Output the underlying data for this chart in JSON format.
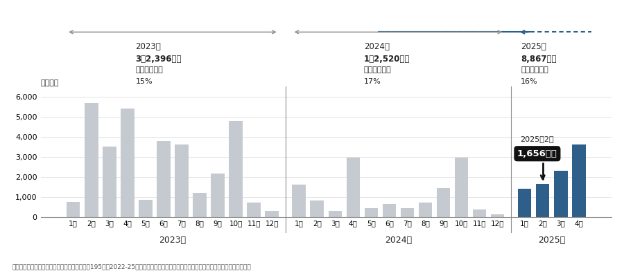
{
  "values_2023": [
    750,
    5700,
    3500,
    5400,
    860,
    3800,
    3600,
    1200,
    2150,
    4800,
    700,
    310
  ],
  "values_2024": [
    1600,
    800,
    300,
    2950,
    450,
    650,
    430,
    700,
    1450,
    2950,
    350,
    110
  ],
  "values_2025": [
    1400,
    1656,
    2300,
    3600
  ],
  "labels_2023": [
    "1月",
    "2月",
    "3月",
    "4月",
    "5月",
    "6月",
    "7月",
    "8月",
    "9月",
    "10月",
    "11月",
    "12月"
  ],
  "labels_2024": [
    "1月",
    "2月",
    "3月",
    "4月",
    "5月",
    "6月",
    "7月",
    "8月",
    "9月",
    "10月",
    "11月",
    "12月"
  ],
  "labels_2025": [
    "1月",
    "2月",
    "3月",
    "4月"
  ],
  "color_gray": "#c5cad1",
  "color_blue": "#2e5f8a",
  "color_text": "#222222",
  "color_annotation_bg": "#111111",
  "color_sep": "#888888",
  "color_arrow_gray": "#999999",
  "ylim": [
    0,
    6500
  ],
  "yticks": [
    0,
    1000,
    2000,
    3000,
    4000,
    5000,
    6000
  ],
  "ylabel": "（品目）",
  "xlabel_2023": "2023年",
  "xlabel_2024": "2024年",
  "xlabel_2025": "2025年",
  "head_2023_year": "2023年",
  "head_2023_items": "3で2,396品目",
  "head_2023_rate_label": "値上げ率平均",
  "head_2023_rate": "15%",
  "head_2024_year": "2024年",
  "head_2024_items": "1で2,520品目",
  "head_2024_rate_label": "値上げ率平均",
  "head_2024_rate": "17%",
  "head_2025_year": "2025年",
  "head_2025_items": "8,867品目",
  "head_2025_rate_label": "値上げ率平均",
  "head_2025_rate": "16%",
  "annotation_label": "2025年2月",
  "annotation_value": "1,656品目",
  "footnote": "［注］主に全国展開を行う上場・非上場の主要195社の2022-25年価格改定計画。実施済みを含む。品目数は再値上げなど重複を含む"
}
